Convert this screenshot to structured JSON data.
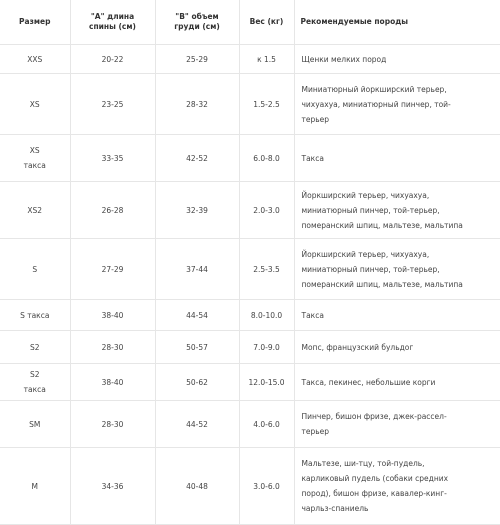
{
  "headers": {
    "size": "Размер",
    "back_a_line1": "\"А\" длина",
    "back_a_line2": "спины (см)",
    "chest_b_line1": "\"В\" объем",
    "chest_b_line2": "груди (см)",
    "weight": "Вес (кг)",
    "breeds": "Рекомендуемые породы"
  },
  "rows": [
    {
      "size_line1": "XXS",
      "size_line2": "",
      "back": "20-22",
      "chest": "25-29",
      "weight": "к 1.5",
      "breeds": [
        "Щенки мелких пород"
      ]
    },
    {
      "size_line1": "XS",
      "size_line2": "",
      "back": "23-25",
      "chest": "28-32",
      "weight": "1.5-2.5",
      "breeds": [
        "Миниатюрный йоркширский терьер,",
        "чихуахуа, миниатюрный пинчер, той-",
        "терьер"
      ]
    },
    {
      "size_line1": "XS",
      "size_line2": "такса",
      "back": "33-35",
      "chest": "42-52",
      "weight": "6.0-8.0",
      "breeds": [
        "Такса"
      ]
    },
    {
      "size_line1": "XS2",
      "size_line2": "",
      "back": "26-28",
      "chest": "32-39",
      "weight": "2.0-3.0",
      "breeds": [
        "Йоркширский терьер, чихуахуа,",
        "миниатюрный пинчер, той-терьер,",
        "померанский шпиц, мальтезе, мальтипа"
      ]
    },
    {
      "size_line1": "S",
      "size_line2": "",
      "back": "27-29",
      "chest": "37-44",
      "weight": "2.5-3.5",
      "breeds": [
        "Йоркширский терьер, чихуахуа,",
        "миниатюрный пинчер, той-терьер,",
        "померанский шпиц, мальтезе, мальтипа"
      ]
    },
    {
      "size_line1": "S такса",
      "size_line2": "",
      "back": "38-40",
      "chest": "44-54",
      "weight": "8.0-10.0",
      "breeds": [
        "Такса"
      ]
    },
    {
      "size_line1": "S2",
      "size_line2": "",
      "back": "28-30",
      "chest": "50-57",
      "weight": "7.0-9.0",
      "breeds": [
        "Мопс, французский бульдог"
      ]
    },
    {
      "size_line1": "S2",
      "size_line2": "такса",
      "back": "38-40",
      "chest": "50-62",
      "weight": "12.0-15.0",
      "breeds": [
        "Такса, пекинес, небольшие корги"
      ]
    },
    {
      "size_line1": "SM",
      "size_line2": "",
      "back": "28-30",
      "chest": "44-52",
      "weight": "4.0-6.0",
      "breeds": [
        "Пинчер, бишон фризе, джек-рассел-",
        "терьер"
      ]
    },
    {
      "size_line1": "M",
      "size_line2": "",
      "back": "34-36",
      "chest": "40-48",
      "weight": "3.0-6.0",
      "breeds": [
        "Мальтезе, ши-тцу, той-пудель,",
        "карликовый пудель (собаки средних",
        "пород), бишон фризе, кавалер-кинг-",
        "чарльз-спаниель"
      ]
    }
  ]
}
